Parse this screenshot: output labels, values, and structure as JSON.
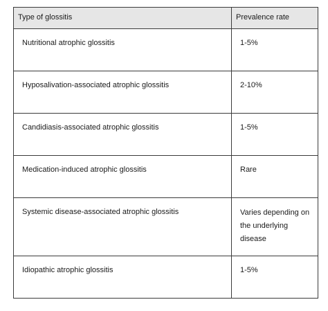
{
  "table": {
    "headers": [
      "Type of glossitis",
      "Prevalence rate"
    ],
    "rows": [
      {
        "type": "Nutritional atrophic glossitis",
        "rate": "1-5%"
      },
      {
        "type": "Hyposalivation-associated atrophic glossitis",
        "rate": "2-10%"
      },
      {
        "type": "Candidiasis-associated atrophic glossitis",
        "rate": "1-5%"
      },
      {
        "type": "Medication-induced atrophic glossitis",
        "rate": "Rare"
      },
      {
        "type": "Systemic disease-associated atrophic glossitis",
        "rate_lines": [
          "Varies depending on",
          "the underlying",
          "disease"
        ]
      },
      {
        "type": "Idiopathic atrophic glossitis",
        "rate": "1-5%"
      }
    ]
  }
}
